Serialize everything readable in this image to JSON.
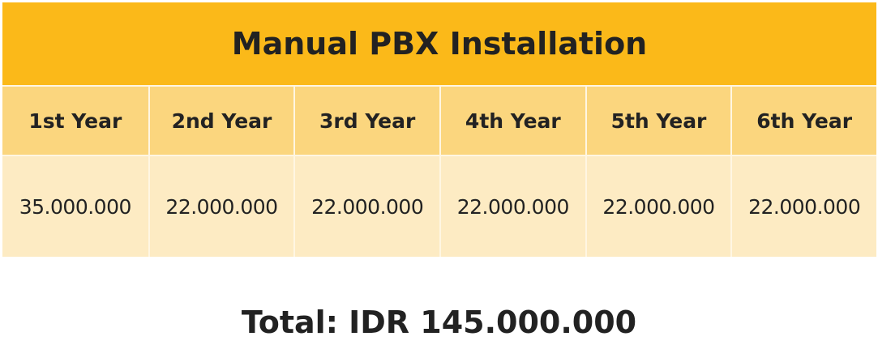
{
  "table": {
    "title": "Manual PBX Installation",
    "headers": [
      "1st Year",
      "2nd Year",
      "3rd Year",
      "4th Year",
      "5th Year",
      "6th Year"
    ],
    "values": [
      "35.000.000",
      "22.000.000",
      "22.000.000",
      "22.000.000",
      "22.000.000",
      "22.000.000"
    ]
  },
  "total": "Total: IDR 145.000.000",
  "colors": {
    "title_background": "#fbb919",
    "header_background": "#fbd67e",
    "value_background": "#fdebc3",
    "text": "#222222"
  }
}
